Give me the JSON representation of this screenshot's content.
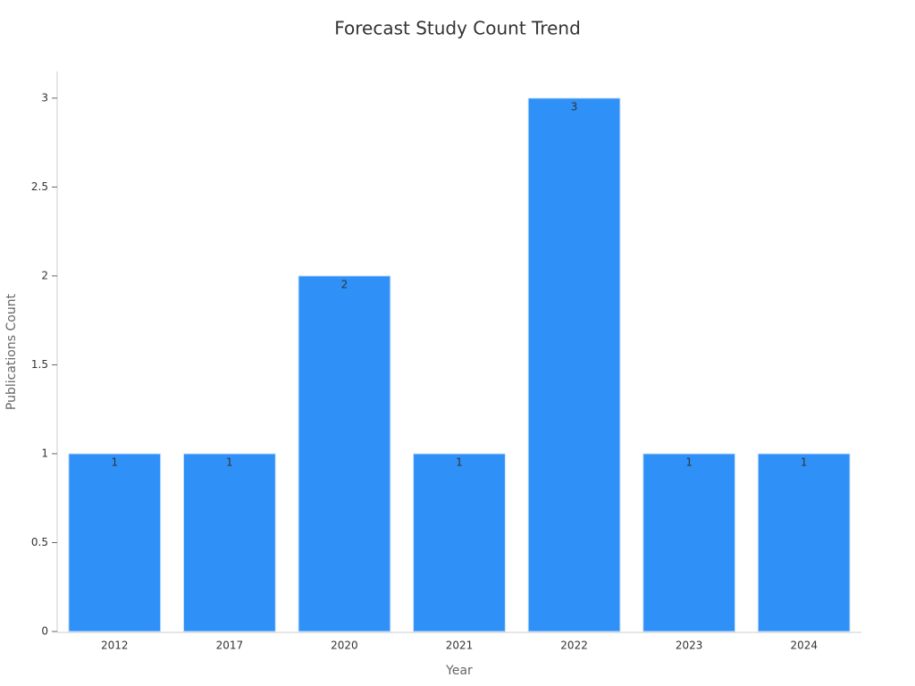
{
  "chart_data": {
    "type": "bar",
    "title": "Forecast Study Count Trend",
    "x_label": "Year",
    "y_label": "Publications Count",
    "categories": [
      "2012",
      "2017",
      "2020",
      "2021",
      "2022",
      "2023",
      "2024"
    ],
    "values": [
      1,
      1,
      2,
      1,
      3,
      1,
      1
    ],
    "color": "#2f91f8",
    "ylim": [
      0,
      3.15
    ],
    "yticks": [
      0,
      0.5,
      1,
      1.5,
      2,
      2.5,
      3
    ],
    "grid": false
  }
}
